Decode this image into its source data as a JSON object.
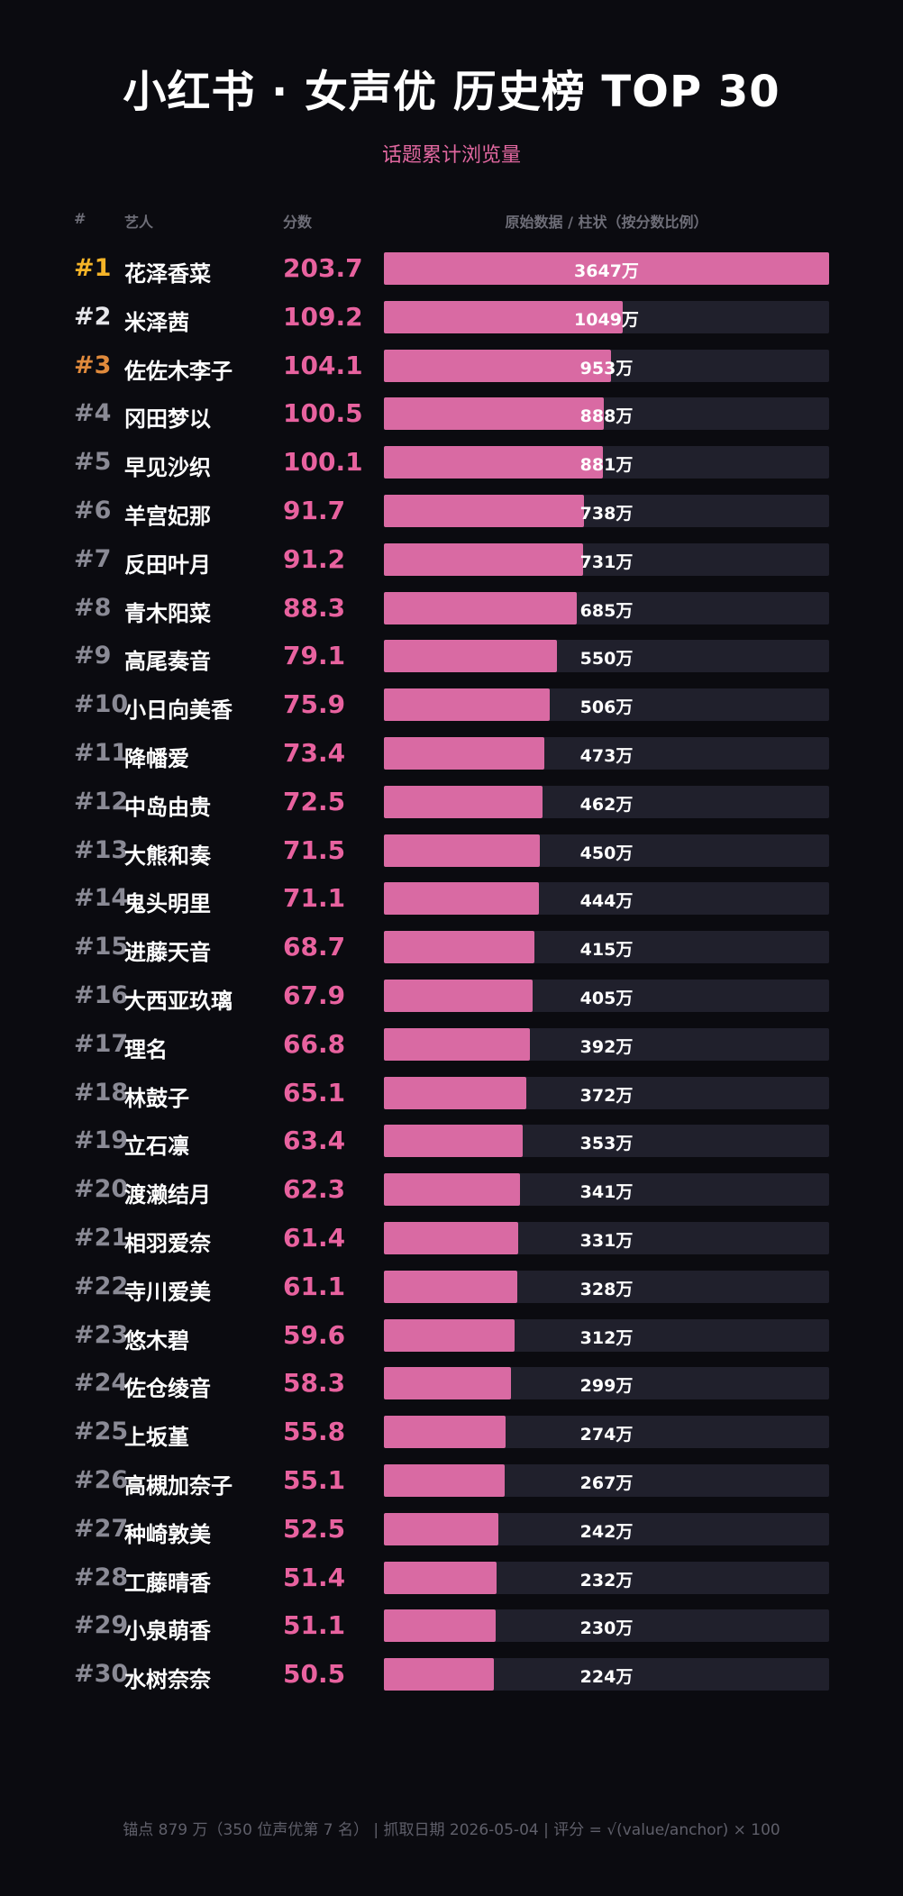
{
  "header": {
    "title": "小红书 · 女声优 历史榜 TOP 30",
    "subtitle": "话题累计浏览量"
  },
  "columns": {
    "rank": "#",
    "artist": "艺人",
    "score": "分数",
    "raw": "原始数据 / 柱状（按分数比例）"
  },
  "colors": {
    "background": "#0b0b10",
    "bar": "#d96aa3",
    "track": "#20202c",
    "score": "#e8629f",
    "rank_1": "#f5b428",
    "rank_2": "#e6e6ea",
    "rank_3": "#e08a3c",
    "rank_other": "#8a8a95"
  },
  "chart_data": {
    "type": "bar",
    "max_score": 203.7,
    "rows": [
      {
        "rank": "#1",
        "name": "花泽香菜",
        "score": 203.7,
        "raw": "3647万"
      },
      {
        "rank": "#2",
        "name": "米泽茜",
        "score": 109.2,
        "raw": "1049万"
      },
      {
        "rank": "#3",
        "name": "佐佐木李子",
        "score": 104.1,
        "raw": "953万"
      },
      {
        "rank": "#4",
        "name": "冈田梦以",
        "score": 100.5,
        "raw": "888万"
      },
      {
        "rank": "#5",
        "name": "早见沙织",
        "score": 100.1,
        "raw": "881万"
      },
      {
        "rank": "#6",
        "name": "羊宫妃那",
        "score": 91.7,
        "raw": "738万"
      },
      {
        "rank": "#7",
        "name": "反田叶月",
        "score": 91.2,
        "raw": "731万"
      },
      {
        "rank": "#8",
        "name": "青木阳菜",
        "score": 88.3,
        "raw": "685万"
      },
      {
        "rank": "#9",
        "name": "高尾奏音",
        "score": 79.1,
        "raw": "550万"
      },
      {
        "rank": "#10",
        "name": "小日向美香",
        "score": 75.9,
        "raw": "506万"
      },
      {
        "rank": "#11",
        "name": "降幡爱",
        "score": 73.4,
        "raw": "473万"
      },
      {
        "rank": "#12",
        "name": "中岛由贵",
        "score": 72.5,
        "raw": "462万"
      },
      {
        "rank": "#13",
        "name": "大熊和奏",
        "score": 71.5,
        "raw": "450万"
      },
      {
        "rank": "#14",
        "name": "鬼头明里",
        "score": 71.1,
        "raw": "444万"
      },
      {
        "rank": "#15",
        "name": "进藤天音",
        "score": 68.7,
        "raw": "415万"
      },
      {
        "rank": "#16",
        "name": "大西亚玖璃",
        "score": 67.9,
        "raw": "405万"
      },
      {
        "rank": "#17",
        "name": "理名",
        "score": 66.8,
        "raw": "392万"
      },
      {
        "rank": "#18",
        "name": "林鼓子",
        "score": 65.1,
        "raw": "372万"
      },
      {
        "rank": "#19",
        "name": "立石凛",
        "score": 63.4,
        "raw": "353万"
      },
      {
        "rank": "#20",
        "name": "渡濑结月",
        "score": 62.3,
        "raw": "341万"
      },
      {
        "rank": "#21",
        "name": "相羽爱奈",
        "score": 61.4,
        "raw": "331万"
      },
      {
        "rank": "#22",
        "name": "寺川爱美",
        "score": 61.1,
        "raw": "328万"
      },
      {
        "rank": "#23",
        "name": "悠木碧",
        "score": 59.6,
        "raw": "312万"
      },
      {
        "rank": "#24",
        "name": "佐仓绫音",
        "score": 58.3,
        "raw": "299万"
      },
      {
        "rank": "#25",
        "name": "上坂堇",
        "score": 55.8,
        "raw": "274万"
      },
      {
        "rank": "#26",
        "name": "高槻加奈子",
        "score": 55.1,
        "raw": "267万"
      },
      {
        "rank": "#27",
        "name": "种崎敦美",
        "score": 52.5,
        "raw": "242万"
      },
      {
        "rank": "#28",
        "name": "工藤晴香",
        "score": 51.4,
        "raw": "232万"
      },
      {
        "rank": "#29",
        "name": "小泉萌香",
        "score": 51.1,
        "raw": "230万"
      },
      {
        "rank": "#30",
        "name": "水树奈奈",
        "score": 50.5,
        "raw": "224万"
      }
    ]
  },
  "footer": {
    "text": "锚点 879 万（350 位声优第 7 名） | 抓取日期 2026-05-04 | 评分 = √(value/anchor) × 100"
  }
}
